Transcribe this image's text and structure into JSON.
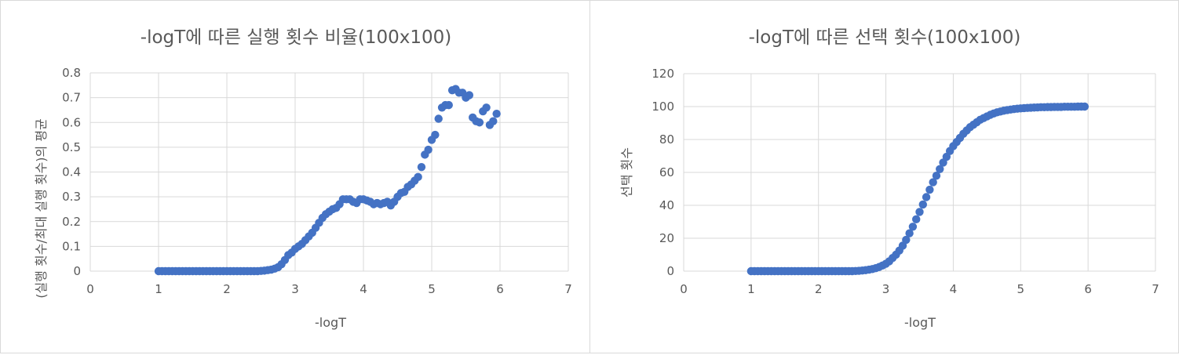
{
  "chart_data": [
    {
      "type": "scatter",
      "title": "-logT에 따른 실행 횟수 비율(100x100)",
      "xlabel": "-logT",
      "ylabel": "(실행 횟수/최대 실행 횟수)의 평균",
      "xlim": [
        0,
        7
      ],
      "ylim": [
        0,
        0.8
      ],
      "xticks": [
        "0",
        "1",
        "2",
        "3",
        "4",
        "5",
        "6",
        "7"
      ],
      "yticks": [
        "0",
        "0.1",
        "0.2",
        "0.3",
        "0.4",
        "0.5",
        "0.6",
        "0.7",
        "0.8"
      ],
      "grid": true,
      "marker_color": "#4472C4",
      "series": [
        {
          "x": [
            1.0,
            1.05,
            1.1,
            1.15,
            1.2,
            1.25,
            1.3,
            1.35,
            1.4,
            1.45,
            1.5,
            1.55,
            1.6,
            1.65,
            1.7,
            1.75,
            1.8,
            1.85,
            1.9,
            1.95,
            2.0,
            2.05,
            2.1,
            2.15,
            2.2,
            2.25,
            2.3,
            2.35,
            2.4,
            2.45,
            2.5,
            2.55,
            2.6,
            2.65,
            2.7,
            2.75,
            2.8,
            2.85,
            2.9,
            2.95,
            3.0,
            3.05,
            3.1,
            3.15,
            3.2,
            3.25,
            3.3,
            3.35,
            3.4,
            3.45,
            3.5,
            3.55,
            3.6,
            3.65,
            3.7,
            3.75,
            3.8,
            3.85,
            3.9,
            3.95,
            4.0,
            4.05,
            4.1,
            4.15,
            4.2,
            4.25,
            4.3,
            4.35,
            4.4,
            4.45,
            4.5,
            4.55,
            4.6,
            4.65,
            4.7,
            4.75,
            4.8,
            4.85,
            4.9,
            4.95,
            5.0,
            5.05,
            5.1,
            5.15,
            5.2,
            5.25,
            5.3,
            5.35,
            5.4,
            5.45,
            5.5,
            5.55,
            5.6,
            5.65,
            5.7,
            5.75,
            5.8,
            5.85,
            5.9,
            5.95
          ],
          "y": [
            0,
            0,
            0,
            0,
            0,
            0,
            0,
            0,
            0,
            0,
            0,
            0,
            0,
            0,
            0,
            0,
            0,
            0,
            0,
            0,
            0,
            0,
            0,
            0,
            0,
            0,
            0,
            0,
            0,
            0,
            0.001,
            0.002,
            0.004,
            0.006,
            0.01,
            0.016,
            0.028,
            0.045,
            0.065,
            0.075,
            0.09,
            0.1,
            0.11,
            0.125,
            0.14,
            0.155,
            0.175,
            0.195,
            0.215,
            0.23,
            0.24,
            0.25,
            0.255,
            0.27,
            0.29,
            0.29,
            0.29,
            0.28,
            0.275,
            0.29,
            0.29,
            0.285,
            0.28,
            0.27,
            0.275,
            0.27,
            0.275,
            0.28,
            0.265,
            0.28,
            0.3,
            0.315,
            0.32,
            0.34,
            0.35,
            0.365,
            0.38,
            0.42,
            0.47,
            0.49,
            0.53,
            0.55,
            0.615,
            0.66,
            0.67,
            0.67,
            0.73,
            0.735,
            0.72,
            0.72,
            0.7,
            0.71,
            0.62,
            0.605,
            0.6,
            0.645,
            0.66,
            0.59,
            0.605,
            0.635
          ]
        }
      ]
    },
    {
      "type": "scatter",
      "title": "-logT에 따른 선택 횟수(100x100)",
      "xlabel": "-logT",
      "ylabel": "선택 횟수",
      "xlim": [
        0,
        7
      ],
      "ylim": [
        0,
        120
      ],
      "xticks": [
        "0",
        "1",
        "2",
        "3",
        "4",
        "5",
        "6",
        "7"
      ],
      "yticks": [
        "0",
        "20",
        "40",
        "60",
        "80",
        "100",
        "120"
      ],
      "grid": true,
      "marker_color": "#4472C4",
      "series": [
        {
          "x": [
            1.0,
            1.05,
            1.1,
            1.15,
            1.2,
            1.25,
            1.3,
            1.35,
            1.4,
            1.45,
            1.5,
            1.55,
            1.6,
            1.65,
            1.7,
            1.75,
            1.8,
            1.85,
            1.9,
            1.95,
            2.0,
            2.05,
            2.1,
            2.15,
            2.2,
            2.25,
            2.3,
            2.35,
            2.4,
            2.45,
            2.5,
            2.55,
            2.6,
            2.65,
            2.7,
            2.75,
            2.8,
            2.85,
            2.9,
            2.95,
            3.0,
            3.05,
            3.1,
            3.15,
            3.2,
            3.25,
            3.3,
            3.35,
            3.4,
            3.45,
            3.5,
            3.55,
            3.6,
            3.65,
            3.7,
            3.75,
            3.8,
            3.85,
            3.9,
            3.95,
            4.0,
            4.05,
            4.1,
            4.15,
            4.2,
            4.25,
            4.3,
            4.35,
            4.4,
            4.45,
            4.5,
            4.55,
            4.6,
            4.65,
            4.7,
            4.75,
            4.8,
            4.85,
            4.9,
            4.95,
            5.0,
            5.05,
            5.1,
            5.15,
            5.2,
            5.25,
            5.3,
            5.35,
            5.4,
            5.45,
            5.5,
            5.55,
            5.6,
            5.65,
            5.7,
            5.75,
            5.8,
            5.85,
            5.9,
            5.95
          ],
          "y": [
            0,
            0,
            0,
            0,
            0,
            0,
            0,
            0,
            0,
            0,
            0,
            0,
            0,
            0,
            0,
            0,
            0,
            0,
            0,
            0,
            0,
            0,
            0,
            0,
            0,
            0,
            0,
            0,
            0,
            0,
            0,
            0.1,
            0.2,
            0.4,
            0.6,
            0.9,
            1.3,
            1.8,
            2.5,
            3.4,
            4.5,
            6,
            8,
            10,
            12.5,
            15.5,
            19,
            23,
            27,
            31.5,
            36,
            40.5,
            45,
            49.5,
            54,
            58,
            62,
            66,
            69.5,
            73,
            76,
            78.5,
            81,
            83.5,
            85.5,
            87.5,
            89,
            90.5,
            92,
            93,
            94,
            95,
            95.8,
            96.5,
            97,
            97.5,
            97.9,
            98.2,
            98.5,
            98.7,
            98.9,
            99.1,
            99.2,
            99.3,
            99.4,
            99.5,
            99.6,
            99.6,
            99.7,
            99.7,
            99.8,
            99.8,
            99.8,
            99.9,
            99.9,
            99.9,
            99.9,
            100,
            100,
            100
          ]
        }
      ]
    }
  ]
}
